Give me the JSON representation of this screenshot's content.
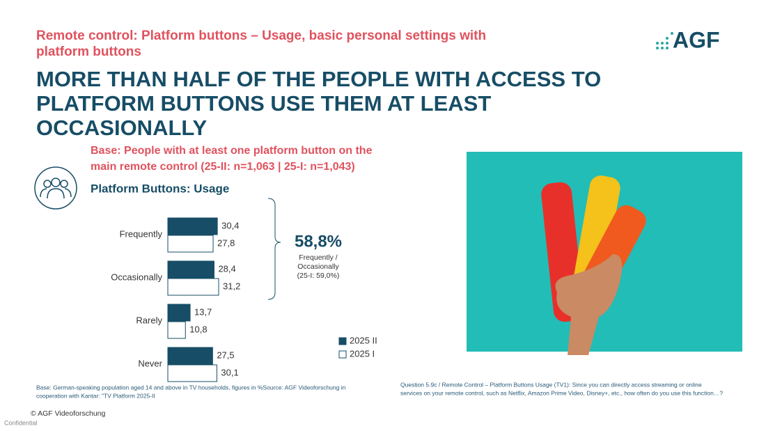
{
  "header": {
    "subtitle_lines": [
      "Remote control: Platform buttons – Usage, basic personal settings with",
      "platform buttons"
    ],
    "title_lines": [
      "MORE THAN HALF OF THE PEOPLE WITH ACCESS TO",
      "PLATFORM BUTTONS USE THEM AT LEAST",
      "OCCASIONALLY"
    ],
    "logo": "AGF",
    "base_lines": [
      "Base: People with at least one platform button on the",
      "main remote control (25-II: n=1,063 | 25-I: n=1,043)"
    ]
  },
  "chart_data": {
    "type": "hbar",
    "title": "Platform Buttons: Usage",
    "categories": [
      "Frequently",
      "Occasionally",
      "Rarely",
      "Never"
    ],
    "series": [
      {
        "name": "2025 II",
        "color": "#174d66",
        "values": [
          30.4,
          28.4,
          13.7,
          27.5
        ],
        "value_labels": [
          "30,4",
          "28,4",
          "13,7",
          "27,5"
        ]
      },
      {
        "name": "2025 I",
        "color": "#ffffff",
        "values": [
          27.8,
          31.2,
          10.8,
          30.1
        ],
        "value_labels": [
          "27,8",
          "31,2",
          "10,8",
          "30,1"
        ]
      }
    ],
    "callout": {
      "value": "58,8%",
      "lines": [
        "Frequently /",
        "Occasionally",
        "(25-I: 59,0%)"
      ]
    }
  },
  "footer": {
    "source": [
      "Base: German-speaking population aged 14 and above in TV households, figures in %Source: AGF Videoforschung in",
      "cooperation with Kantar: \"TV Platform 2025-II"
    ],
    "question": [
      "Question 5.9c / Remote Control – Platform Buttons Usage (TV1): Since you can directly access streaming or online",
      "services on your remote control, such as Netflix, Amazon Prime Video, Disney+, etc., how often do you use this function…?"
    ],
    "copyright": "© AGF Videoforschung",
    "confidential": "Confidential"
  }
}
